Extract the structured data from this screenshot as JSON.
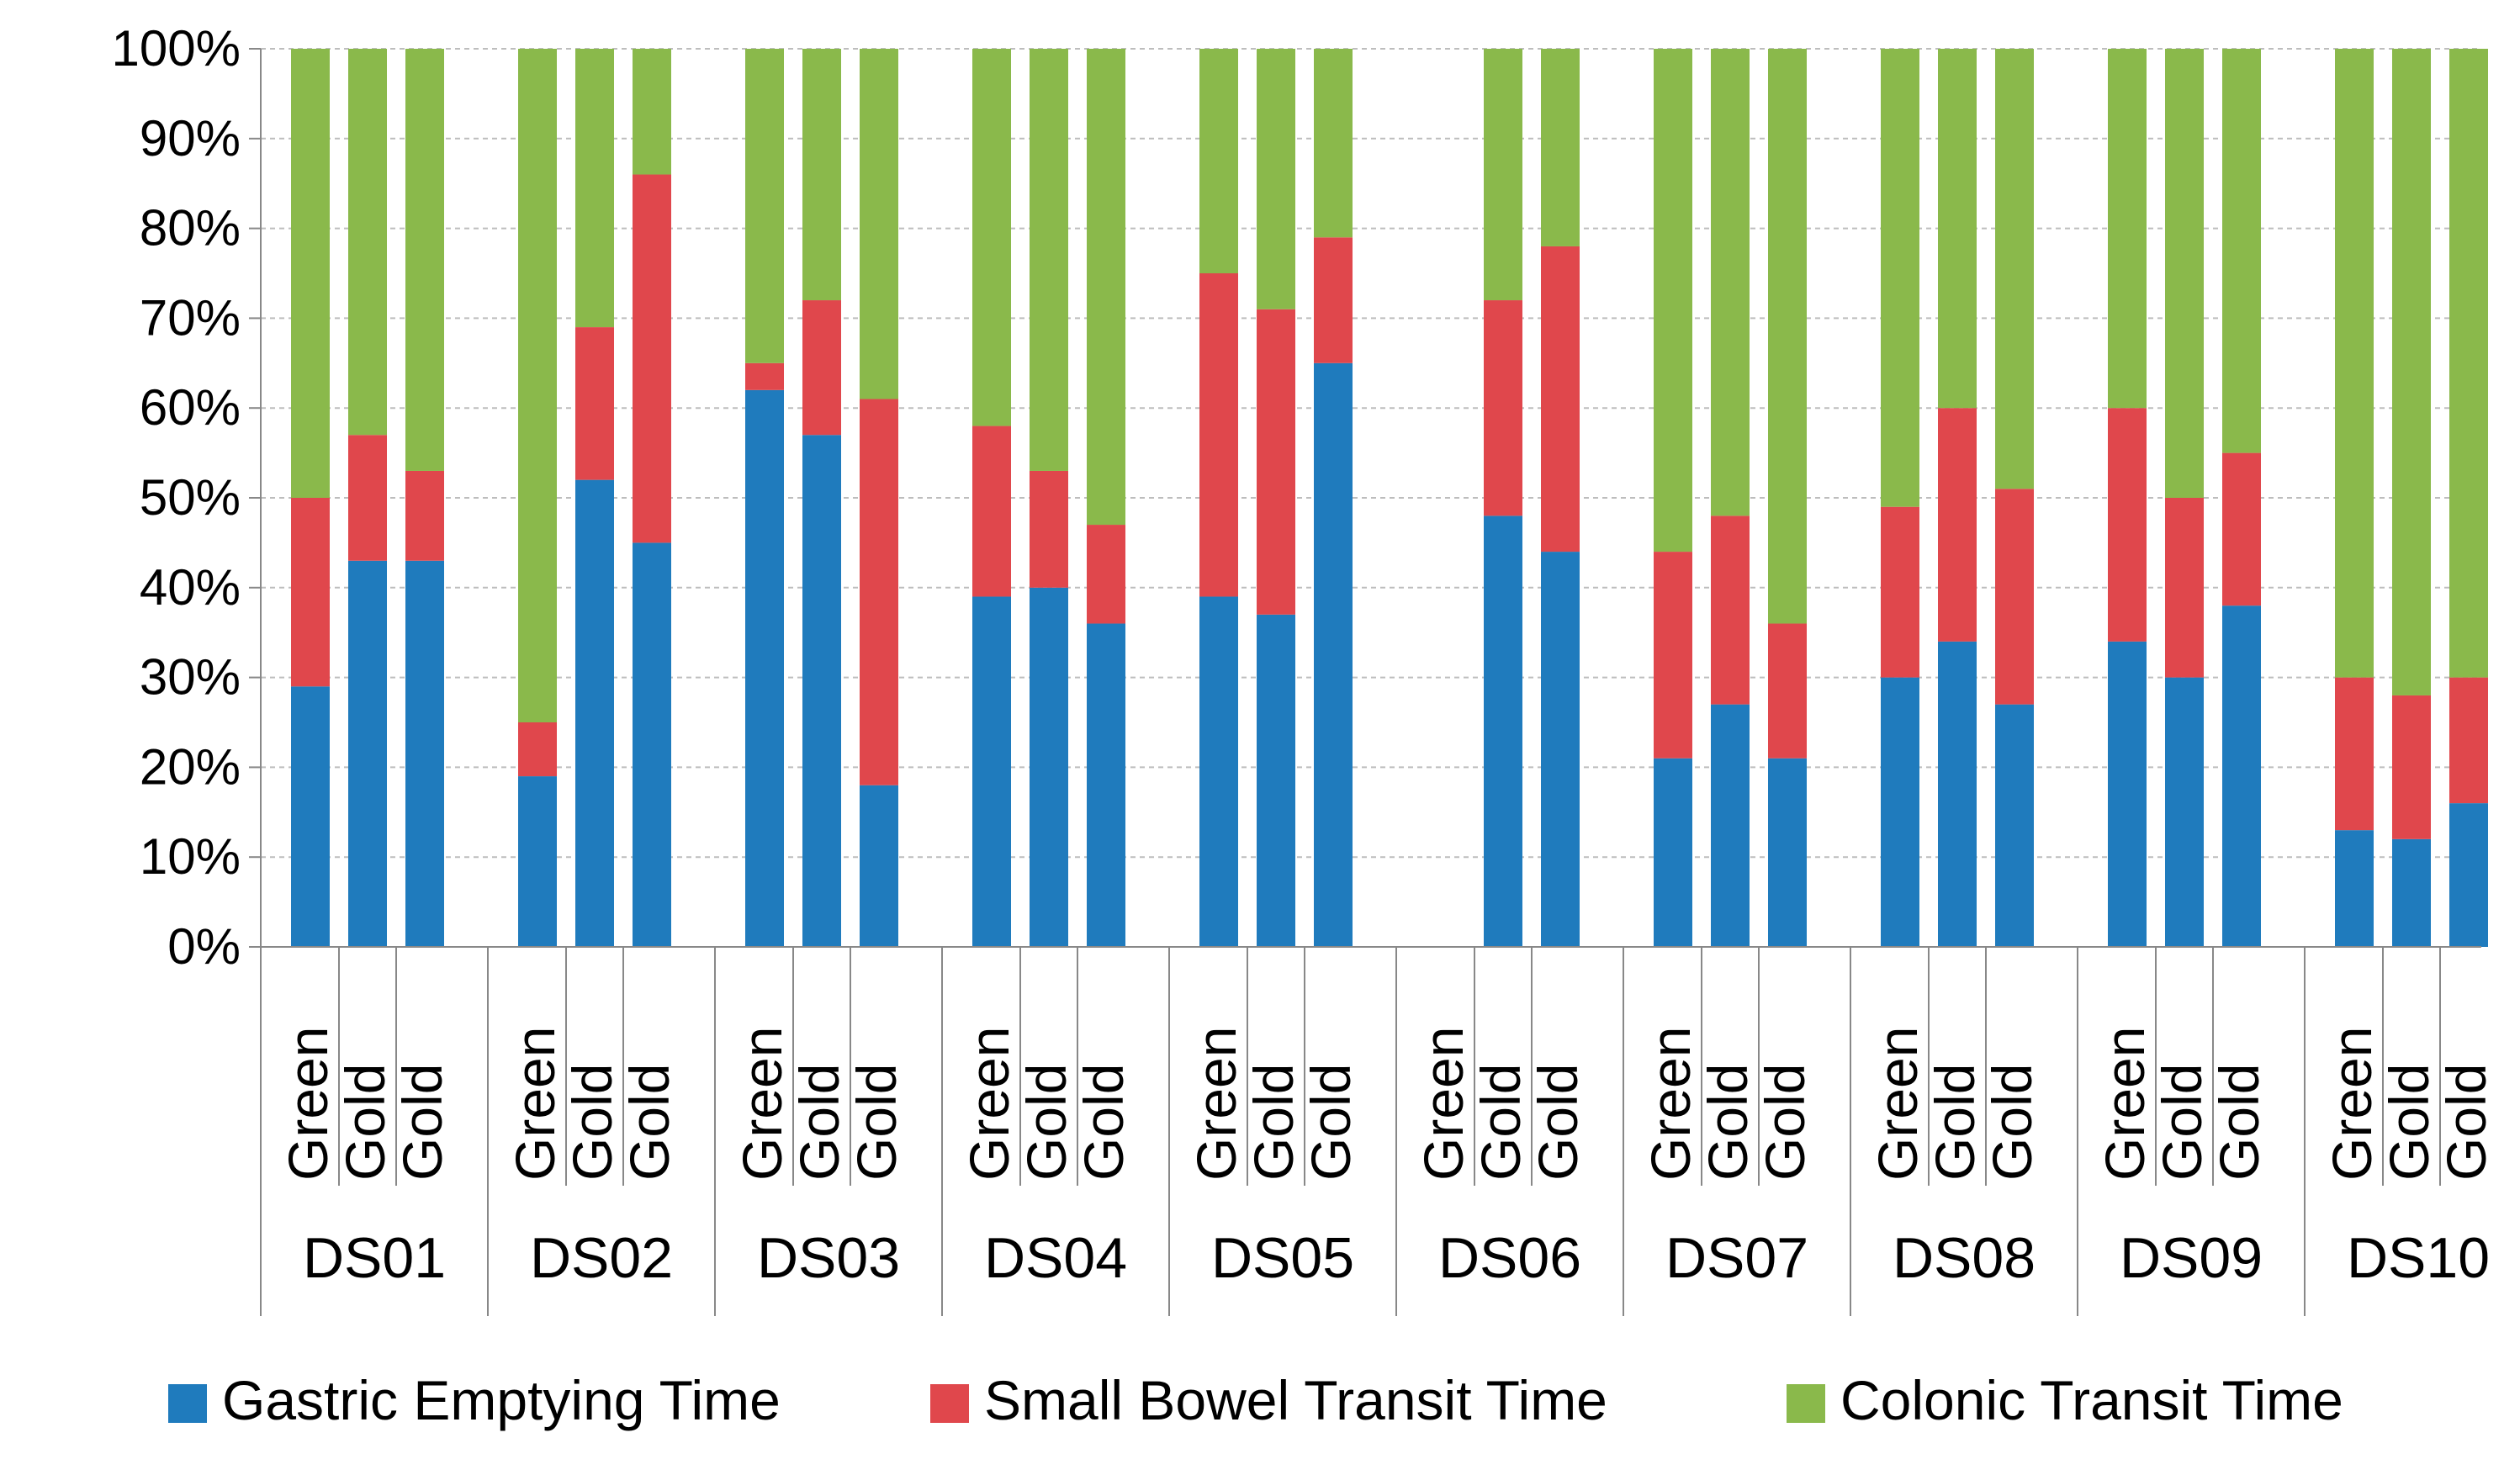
{
  "chart_data": {
    "type": "bar",
    "stacked": true,
    "normalized": true,
    "y_tick_labels": [
      "0%",
      "10%",
      "20%",
      "30%",
      "40%",
      "50%",
      "60%",
      "70%",
      "80%",
      "90%",
      "100%"
    ],
    "ylim": [
      0,
      100
    ],
    "grid": true,
    "groups": [
      {
        "name": "DS01",
        "bars": [
          {
            "category": "Green",
            "values": [
              29,
              21,
              50
            ]
          },
          {
            "category": "Gold",
            "values": [
              43,
              14,
              43
            ]
          },
          {
            "category": "Gold",
            "values": [
              43,
              10,
              47
            ]
          }
        ]
      },
      {
        "name": "DS02",
        "bars": [
          {
            "category": "Green",
            "values": [
              19,
              6,
              75
            ]
          },
          {
            "category": "Gold",
            "values": [
              52,
              17,
              31
            ]
          },
          {
            "category": "Gold",
            "values": [
              45,
              41,
              14
            ]
          }
        ]
      },
      {
        "name": "DS03",
        "bars": [
          {
            "category": "Green",
            "values": [
              62,
              3,
              35
            ]
          },
          {
            "category": "Gold",
            "values": [
              57,
              15,
              28
            ]
          },
          {
            "category": "Gold",
            "values": [
              18,
              43,
              39
            ]
          }
        ]
      },
      {
        "name": "DS04",
        "bars": [
          {
            "category": "Green",
            "values": [
              39,
              19,
              42
            ]
          },
          {
            "category": "Gold",
            "values": [
              40,
              13,
              47
            ]
          },
          {
            "category": "Gold",
            "values": [
              36,
              11,
              53
            ]
          }
        ]
      },
      {
        "name": "DS05",
        "bars": [
          {
            "category": "Green",
            "values": [
              39,
              36,
              25
            ]
          },
          {
            "category": "Gold",
            "values": [
              37,
              34,
              29
            ]
          },
          {
            "category": "Gold",
            "values": [
              65,
              14,
              21
            ]
          }
        ]
      },
      {
        "name": "DS06",
        "bars": [
          {
            "category": "Green",
            "values": null
          },
          {
            "category": "Gold",
            "values": [
              48,
              24,
              28
            ]
          },
          {
            "category": "Gold",
            "values": [
              44,
              34,
              22
            ]
          }
        ]
      },
      {
        "name": "DS07",
        "bars": [
          {
            "category": "Green",
            "values": [
              21,
              23,
              56
            ]
          },
          {
            "category": "Gold",
            "values": [
              27,
              21,
              52
            ]
          },
          {
            "category": "Gold",
            "values": [
              21,
              15,
              64
            ]
          }
        ]
      },
      {
        "name": "DS08",
        "bars": [
          {
            "category": "Green",
            "values": [
              30,
              19,
              51
            ]
          },
          {
            "category": "Gold",
            "values": [
              34,
              26,
              40
            ]
          },
          {
            "category": "Gold",
            "values": [
              27,
              24,
              49
            ]
          }
        ]
      },
      {
        "name": "DS09",
        "bars": [
          {
            "category": "Green",
            "values": [
              34,
              26,
              40
            ]
          },
          {
            "category": "Gold",
            "values": [
              30,
              20,
              50
            ]
          },
          {
            "category": "Gold",
            "values": [
              38,
              17,
              45
            ]
          }
        ]
      },
      {
        "name": "DS10",
        "bars": [
          {
            "category": "Green",
            "values": [
              13,
              17,
              70
            ]
          },
          {
            "category": "Gold",
            "values": [
              12,
              16,
              72
            ]
          },
          {
            "category": "Gold",
            "values": [
              16,
              14,
              70
            ]
          }
        ]
      }
    ],
    "series": [
      {
        "name": "Gastric Emptying Time",
        "color": "#1f7bbd"
      },
      {
        "name": "Small Bowel Transit Time",
        "color": "#e0474c"
      },
      {
        "name": "Colonic Transit Time",
        "color": "#8ab94b"
      }
    ],
    "legend_position": "bottom"
  }
}
